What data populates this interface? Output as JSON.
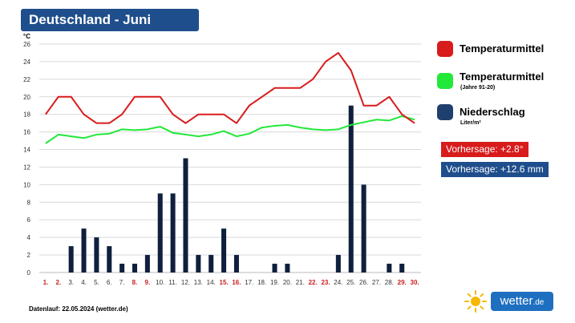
{
  "title": "Deutschland - Juni",
  "legend": [
    {
      "label": "Temperaturmittel",
      "sub": "",
      "color": "#d81b1b"
    },
    {
      "label": "Temperaturmittel",
      "sub": "(Jahre 91-20)",
      "color": "#22e83a"
    },
    {
      "label": "Niederschlag",
      "sub": "Liter/m²",
      "color": "#1f3f6e"
    }
  ],
  "forecast": {
    "temp": {
      "label": "Vorhersage: +2.8°",
      "color": "#d81b1b"
    },
    "precip": {
      "label": "Vorhersage: +12.6 mm",
      "color": "#1f4e8c"
    }
  },
  "footer": "Datenlauf: 22.05.2024 (wetter.de)",
  "brand": {
    "name": "wetter",
    "tld": ".de"
  },
  "chart_data": {
    "type": "bar",
    "yunit": "°C",
    "ylim": [
      0,
      26
    ],
    "yticks": [
      0,
      2,
      4,
      6,
      8,
      10,
      12,
      14,
      16,
      18,
      20,
      22,
      24,
      26
    ],
    "grid": true,
    "categories": [
      "1.",
      "2.",
      "3.",
      "4.",
      "5.",
      "6.",
      "7.",
      "8.",
      "9.",
      "10.",
      "11.",
      "12.",
      "13.",
      "14.",
      "15.",
      "16.",
      "17.",
      "18.",
      "19.",
      "20.",
      "21.",
      "22.",
      "23.",
      "24.",
      "25.",
      "26.",
      "27.",
      "28.",
      "29.",
      "30."
    ],
    "highlighted_days": [
      "1.",
      "2.",
      "8.",
      "9.",
      "15.",
      "16.",
      "22.",
      "23.",
      "29.",
      "30."
    ],
    "series": [
      {
        "name": "Temperaturmittel",
        "type": "line",
        "color": "#d81b1b",
        "values": [
          18,
          20,
          20,
          18,
          17,
          17,
          18,
          20,
          20,
          20,
          18,
          17,
          18,
          18,
          18,
          17,
          19,
          20,
          21,
          21,
          21,
          22,
          24,
          25,
          23,
          19,
          19,
          20,
          18,
          17
        ]
      },
      {
        "name": "Temperaturmittel (Jahre 91-20)",
        "type": "line",
        "color": "#22e83a",
        "values": [
          14.7,
          15.7,
          15.5,
          15.3,
          15.7,
          15.8,
          16.3,
          16.2,
          16.3,
          16.6,
          15.9,
          15.7,
          15.5,
          15.7,
          16.1,
          15.5,
          15.8,
          16.5,
          16.7,
          16.8,
          16.5,
          16.3,
          16.2,
          16.3,
          16.8,
          17.1,
          17.4,
          17.3,
          17.8,
          17.4
        ]
      },
      {
        "name": "Niederschlag",
        "type": "bar",
        "color": "#0f1f3d",
        "values": [
          0,
          0,
          3,
          5,
          4,
          3,
          1,
          1,
          2,
          9,
          9,
          13,
          2,
          2,
          5,
          2,
          0,
          0,
          1,
          1,
          0,
          0,
          0,
          2,
          19,
          10,
          0,
          1,
          1,
          0
        ]
      }
    ]
  }
}
